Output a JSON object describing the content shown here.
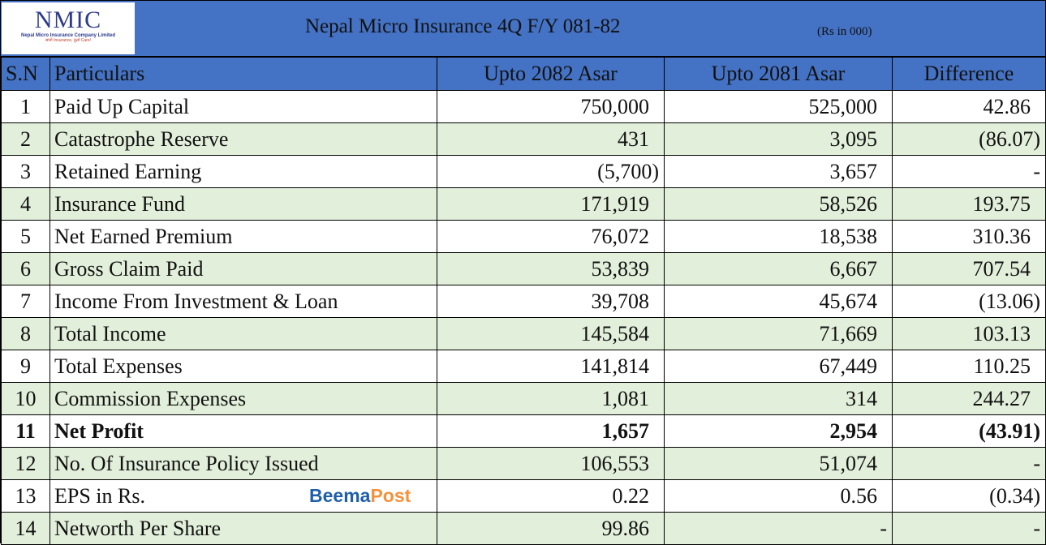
{
  "logo": {
    "name": "NMIC",
    "company": "Nepal Micro Insurance Company Limited",
    "tagline": "सानो Insurance, ठूलो Care!"
  },
  "title": "Nepal Micro Insurance 4Q F/Y 081-82",
  "unit": "(Rs in 000)",
  "colors": {
    "header": "#4472c4",
    "stripe": "#e2efda"
  },
  "headers": [
    "S.N",
    "Particulars",
    "Upto 2082 Asar",
    "Upto 2081 Asar",
    "Difference"
  ],
  "rows": [
    {
      "sn": "1",
      "particular": "Paid Up Capital",
      "y2082": "750,000",
      "y2081": "525,000",
      "diff": "42.86"
    },
    {
      "sn": "2",
      "particular": "Catastrophe Reserve",
      "y2082": "431",
      "y2081": "3,095",
      "diff": "(86.07)"
    },
    {
      "sn": "3",
      "particular": "Retained Earning",
      "y2082": "(5,700)",
      "y2081": "3,657",
      "diff": "-"
    },
    {
      "sn": "4",
      "particular": "Insurance Fund",
      "y2082": "171,919",
      "y2081": "58,526",
      "diff": "193.75"
    },
    {
      "sn": "5",
      "particular": "Net Earned Premium",
      "y2082": "76,072",
      "y2081": "18,538",
      "diff": "310.36"
    },
    {
      "sn": "6",
      "particular": "Gross Claim Paid",
      "y2082": "53,839",
      "y2081": "6,667",
      "diff": "707.54"
    },
    {
      "sn": "7",
      "particular": "Income From Investment & Loan",
      "y2082": "39,708",
      "y2081": "45,674",
      "diff": "(13.06)"
    },
    {
      "sn": "8",
      "particular": "Total Income",
      "y2082": "145,584",
      "y2081": "71,669",
      "diff": "103.13"
    },
    {
      "sn": "9",
      "particular": "Total Expenses",
      "y2082": "141,814",
      "y2081": "67,449",
      "diff": "110.25"
    },
    {
      "sn": "10",
      "particular": "Commission Expenses",
      "y2082": "1,081",
      "y2081": "314",
      "diff": "244.27"
    },
    {
      "sn": "11",
      "particular": "Net Profit",
      "y2082": "1,657",
      "y2081": "2,954",
      "diff": "(43.91)",
      "bold": true
    },
    {
      "sn": "12",
      "particular": "No. Of Insurance Policy Issued",
      "y2082": "106,553",
      "y2081": "51,074",
      "diff": "-"
    },
    {
      "sn": "13",
      "particular": "EPS in Rs.",
      "y2082": "0.22",
      "y2081": "0.56",
      "diff": "(0.34)"
    },
    {
      "sn": "14",
      "particular": "Networth Per Share",
      "y2082": "99.86",
      "y2081": "-",
      "diff": "-"
    }
  ],
  "watermark": {
    "part1": "Beema",
    "part2": "Post"
  }
}
